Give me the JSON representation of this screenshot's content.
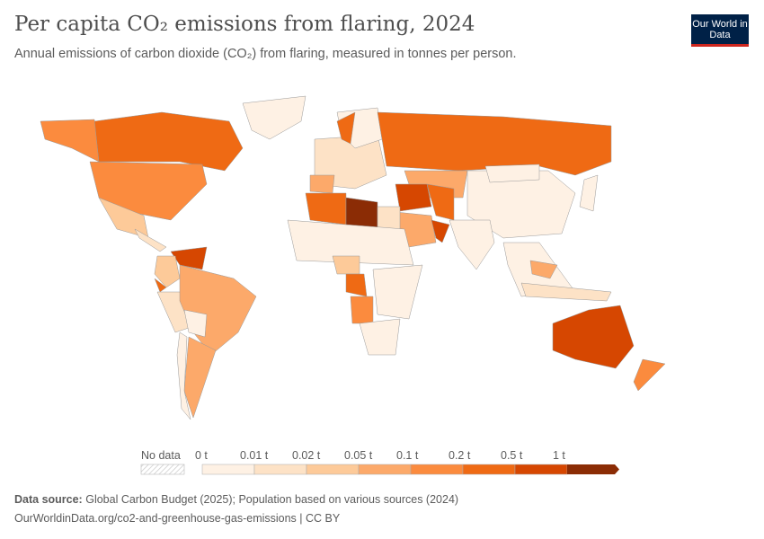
{
  "header": {
    "title": "Per capita CO₂ emissions from flaring, 2024",
    "subtitle": "Annual emissions of carbon dioxide (CO₂) from flaring, measured in tonnes per person.",
    "logo": "Our World in Data"
  },
  "legend": {
    "no_data": "No data",
    "bins": [
      {
        "label": "0 t",
        "color": "#fef1e4"
      },
      {
        "label": "0.01 t",
        "color": "#fde2c6"
      },
      {
        "label": "0.02 t",
        "color": "#fdca99"
      },
      {
        "label": "0.05 t",
        "color": "#fca96a"
      },
      {
        "label": "0.1 t",
        "color": "#fb8b3e"
      },
      {
        "label": "0.2 t",
        "color": "#ef6a14"
      },
      {
        "label": "0.5 t",
        "color": "#d64701"
      },
      {
        "label": "1 t",
        "color": "#8b2c05"
      }
    ]
  },
  "footer": {
    "source_label": "Data source:",
    "source": "Global Carbon Budget (2025); Population based on various sources (2024)",
    "url": "OurWorldinData.org/co2-and-greenhouse-gas-emissions | CC BY"
  }
}
